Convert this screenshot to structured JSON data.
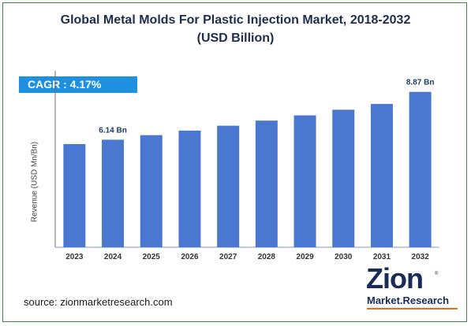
{
  "title": {
    "line1": "Global Metal Molds For Plastic Injection Market, 2018-2032",
    "line2": "(USD Billion)"
  },
  "cagr": {
    "label": "CAGR :",
    "value": "4.17%"
  },
  "source": "source: zionmarketresearch.com",
  "logo": {
    "main": "Zion",
    "sub": "Market.Research",
    "tm": "®"
  },
  "colors": {
    "bar": "#4a78d0",
    "cagr_bg": "#1f8fe0",
    "title": "#1f2d4d",
    "frame": "#3a8a3a",
    "logo": "#1a2b5a",
    "logo_accent": "#e86a1a"
  },
  "chart_data": {
    "type": "bar",
    "title": "Global Metal Molds For Plastic Injection Market, 2018-2032 (USD Billion)",
    "ylabel": "Revenue (USD Mn/Bn)",
    "xlabel": "",
    "categories": [
      "2023",
      "2024",
      "2025",
      "2026",
      "2027",
      "2028",
      "2029",
      "2030",
      "2031",
      "2032"
    ],
    "values": [
      5.89,
      6.14,
      6.4,
      6.66,
      6.94,
      7.23,
      7.53,
      7.85,
      8.18,
      8.87
    ],
    "data_labels": {
      "1": "6.14 Bn",
      "9": "8.87 Bn"
    },
    "ylim": [
      0,
      9.8
    ],
    "grid": false,
    "legend": "none"
  }
}
